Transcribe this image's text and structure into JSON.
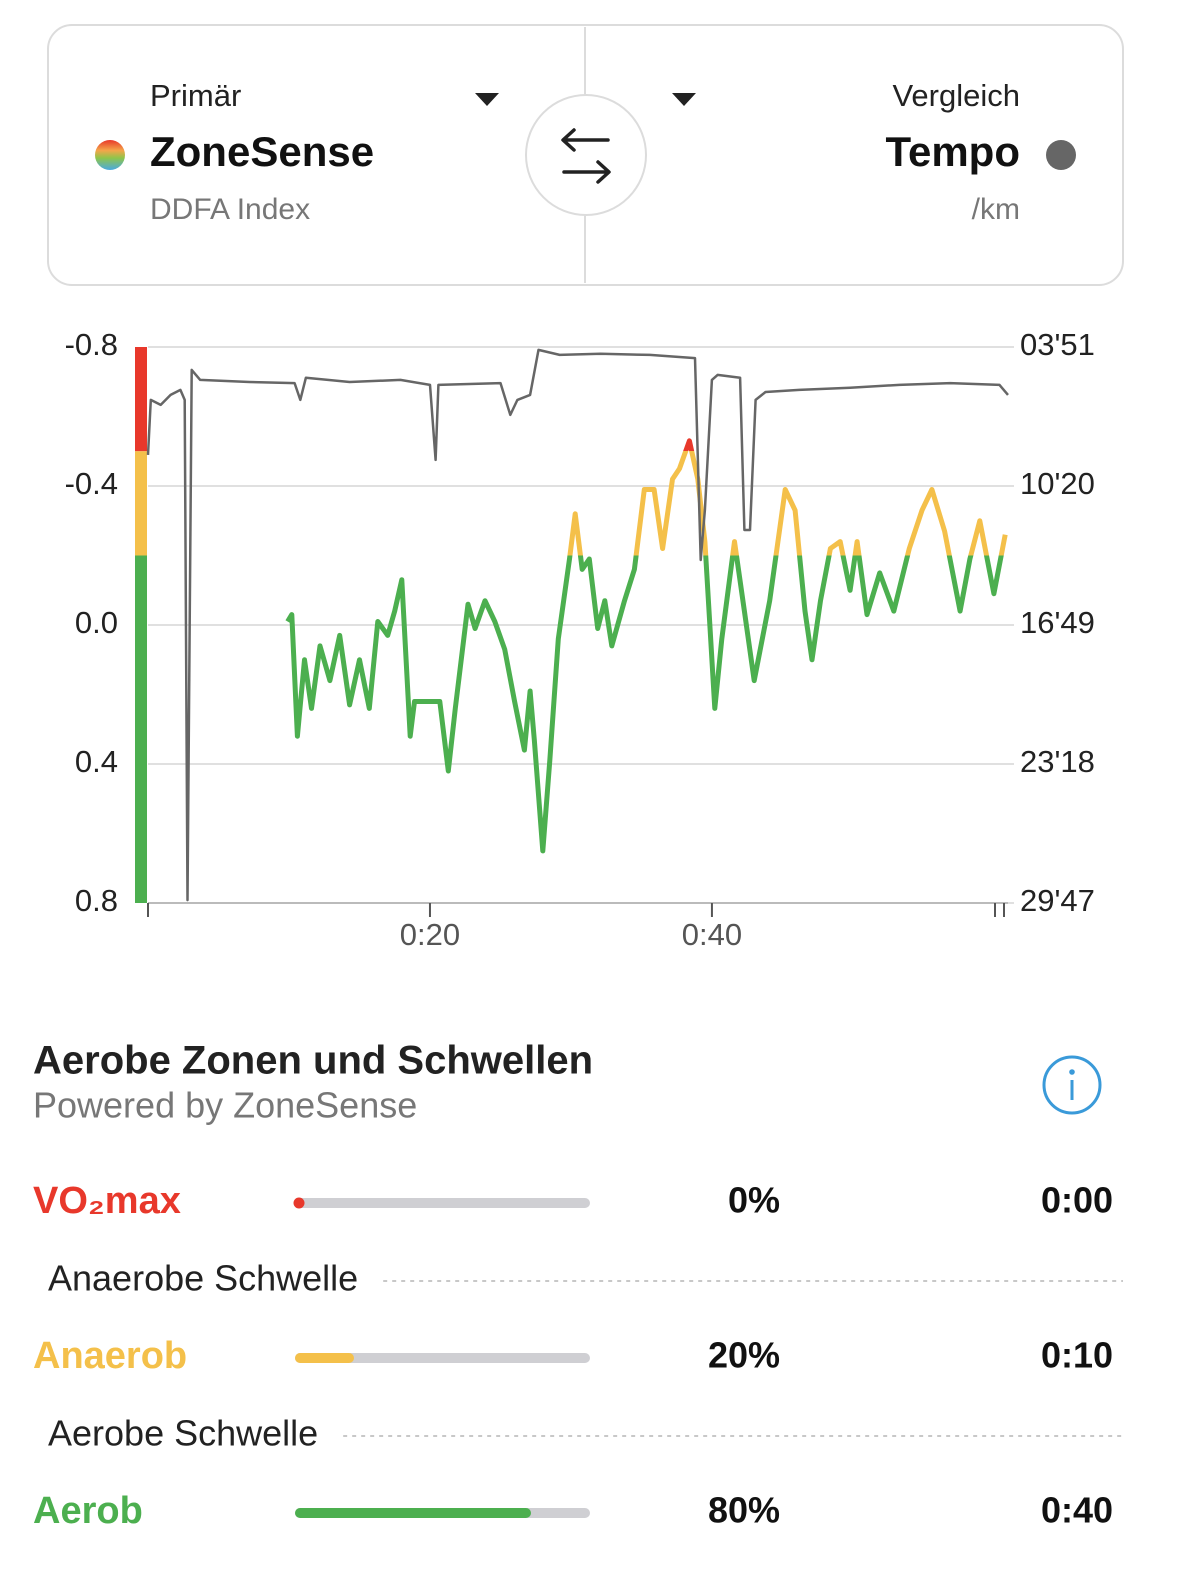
{
  "header": {
    "primary": {
      "label": "Primär",
      "metric": "ZoneSense",
      "unit": "DDFA Index"
    },
    "compare": {
      "label": "Vergleich",
      "metric": "Tempo",
      "unit": "/km",
      "color": "#666666"
    }
  },
  "chart_data": {
    "type": "line",
    "xlim": [
      0,
      61
    ],
    "xticks": [
      {
        "value": 20,
        "label": "0:20"
      },
      {
        "value": 40,
        "label": "0:40"
      }
    ],
    "ylim": [
      0.8,
      -0.8
    ],
    "yticks": [
      -0.8,
      -0.4,
      {
        "value": 0,
        "label": "0.0"
      },
      0.4,
      0.8
    ],
    "y2lim": [
      1787,
      231
    ],
    "y2ticks": [
      {
        "value": 231,
        "label": "03'51"
      },
      {
        "value": 620,
        "label": "10'20"
      },
      {
        "value": 1009,
        "label": "16'49"
      },
      {
        "value": 1398,
        "label": "23'18"
      },
      {
        "value": 1787,
        "label": "29'47"
      }
    ],
    "grid": true,
    "zones": [
      {
        "color": "#e8382b",
        "from": -0.8,
        "to": -0.5
      },
      {
        "color": "#f4c04a",
        "from": -0.5,
        "to": -0.2
      },
      {
        "color": "#4caf4f",
        "from": -0.2,
        "to": 0.8
      }
    ],
    "series": [
      {
        "x": [
          9.9,
          10.2,
          10.6,
          11.1,
          11.6,
          12.2,
          12.9,
          13.6,
          14.3,
          15.0,
          15.7,
          16.3,
          17.0,
          17.5,
          18.0,
          18.6,
          18.9,
          20.7,
          21.3,
          21.8,
          22.7,
          23.2,
          23.9,
          24.6,
          25.3,
          26.0,
          26.7,
          27.1,
          27.4,
          28.0,
          28.5,
          29.1,
          29.9,
          30.3,
          30.8,
          31.3,
          31.9,
          32.4,
          32.9,
          33.8,
          34.5,
          35.2,
          35.9,
          36.5,
          37.2,
          37.7,
          38.4,
          39.0,
          39.5,
          40.2,
          40.7,
          41.6,
          42.3,
          43.0,
          44.1,
          45.2,
          45.9,
          46.6,
          47.1,
          47.7,
          48.4,
          49.1,
          49.8,
          50.3,
          51.0,
          51.9,
          52.9,
          54.0,
          54.9,
          55.6,
          56.5,
          57.6,
          58.3,
          59.0,
          60.0,
          60.8
        ],
        "values": [
          -0.01,
          -0.03,
          0.32,
          0.1,
          0.24,
          0.06,
          0.16,
          0.03,
          0.23,
          0.1,
          0.24,
          -0.01,
          0.03,
          -0.04,
          -0.13,
          0.32,
          0.22,
          0.22,
          0.42,
          0.24,
          -0.06,
          0.01,
          -0.07,
          -0.01,
          0.07,
          0.22,
          0.36,
          0.19,
          0.33,
          0.65,
          0.39,
          0.04,
          -0.19,
          -0.32,
          -0.16,
          -0.19,
          0.01,
          -0.07,
          0.06,
          -0.07,
          -0.16,
          -0.39,
          -0.39,
          -0.22,
          -0.42,
          -0.45,
          -0.53,
          -0.42,
          -0.24,
          0.24,
          0.04,
          -0.24,
          -0.04,
          0.16,
          -0.07,
          -0.39,
          -0.33,
          -0.04,
          0.1,
          -0.07,
          -0.22,
          -0.24,
          -0.1,
          -0.24,
          -0.03,
          -0.15,
          -0.04,
          -0.22,
          -0.33,
          -0.39,
          -0.27,
          -0.04,
          -0.19,
          -0.3,
          -0.09,
          -0.26
        ]
      },
      {
        "axis": "y2",
        "color": "#666666",
        "x": [
          0,
          0.2,
          0.9,
          1.6,
          2.3,
          2.6,
          2.8,
          3.1,
          3.7,
          7.2,
          10.4,
          10.8,
          11.2,
          14.3,
          17.9,
          20,
          20.4,
          20.6,
          25,
          25.7,
          26.2,
          27.1,
          27.7,
          29.2,
          32.1,
          35.6,
          38.8,
          39.2,
          39.5,
          40,
          40.4,
          42,
          42.3,
          42.7,
          43.1,
          43.8,
          46.2,
          49.8,
          53.3,
          56.9,
          60.4,
          61
        ],
        "values": [
          533,
          379,
          393,
          365,
          351,
          379,
          1779,
          295,
          323,
          329,
          332,
          379,
          317,
          329,
          323,
          337,
          547,
          337,
          332,
          421,
          379,
          365,
          239,
          253,
          250,
          253,
          262,
          827,
          687,
          323,
          309,
          317,
          743,
          743,
          379,
          357,
          351,
          345,
          337,
          332,
          337,
          365
        ]
      }
    ]
  },
  "zones_section": {
    "title": "Aerobe Zonen und Schwellen",
    "subtitle": "Powered by ZoneSense",
    "rows": {
      "names": [
        "VO₂max",
        "Anaerob",
        "Aerob"
      ],
      "colors": [
        "#e8382b",
        "#f4c04a",
        "#4caf4f"
      ],
      "values": [
        0,
        20,
        80
      ],
      "value_labels": [
        "0%",
        "20%",
        "80%"
      ],
      "times": [
        "0:00",
        "0:10",
        "0:40"
      ]
    },
    "thresholds": [
      "Anaerobe Schwelle",
      "Aerobe Schwelle"
    ]
  }
}
